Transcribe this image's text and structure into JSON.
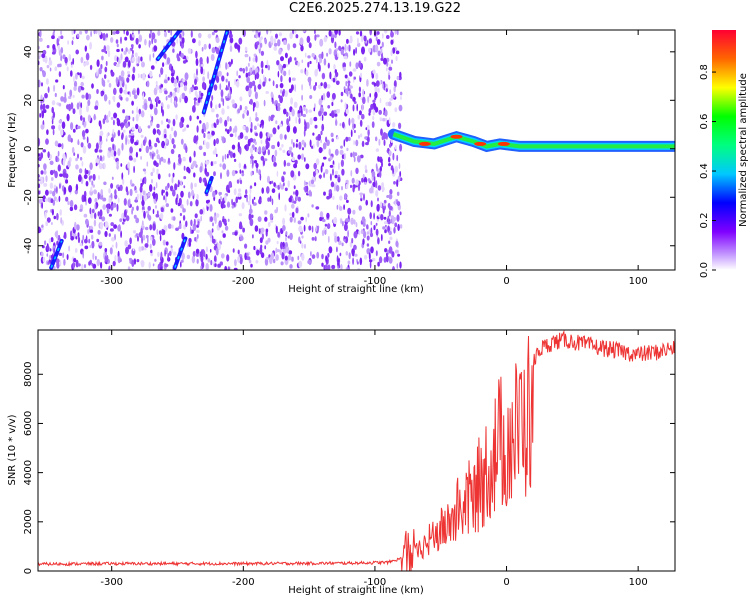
{
  "title": "C2E6.2025.274.13.19.G22",
  "chart_data": [
    {
      "type": "heatmap",
      "name": "spectrogram",
      "xlabel": "Height of straight line (km)",
      "ylabel": "Frequency (Hz)",
      "xlim": [
        -356,
        128
      ],
      "ylim": [
        -50,
        49
      ],
      "xticks": [
        -300,
        -200,
        -100,
        0,
        100
      ],
      "yticks": [
        -40,
        -20,
        0,
        20,
        40
      ],
      "colorbar": {
        "label": "Normalized spectral amplitude",
        "range": [
          0,
          0.97
        ],
        "ticks": [
          "0.0",
          "0.2",
          "0.4",
          "0.6",
          "0.8"
        ],
        "tick_values": [
          0.0,
          0.2,
          0.4,
          0.6,
          0.8
        ]
      },
      "noise_region_end_x": -86,
      "carrier_tones": [
        {
          "x_start": -86,
          "x_end": 128,
          "freq": [
            [
              -86,
              6
            ],
            [
              -70,
              3
            ],
            [
              -55,
              2
            ],
            [
              -38,
              5
            ],
            [
              -25,
              3
            ],
            [
              -15,
              1
            ],
            [
              -5,
              2
            ],
            [
              10,
              1
            ],
            [
              60,
              1
            ],
            [
              128,
              1
            ]
          ]
        }
      ],
      "diagonal_features": [
        {
          "x": [
            -265,
            -248
          ],
          "freq": [
            37,
            49
          ]
        },
        {
          "x": [
            -230,
            -212
          ],
          "freq": [
            15,
            49
          ]
        },
        {
          "x": [
            -252,
            -244
          ],
          "freq": [
            -49,
            -37
          ]
        },
        {
          "x": [
            -228,
            -224
          ],
          "freq": [
            -18,
            -12
          ]
        },
        {
          "x": [
            -346,
            -338
          ],
          "freq": [
            -49,
            -38
          ]
        }
      ]
    },
    {
      "type": "line",
      "name": "snr",
      "xlabel": "Height of straight line (km)",
      "ylabel": "SNR (10 * v/v)",
      "xlim": [
        -356,
        128
      ],
      "ylim": [
        0,
        9800
      ],
      "xticks": [
        -300,
        -200,
        -100,
        0,
        100
      ],
      "yticks": [
        0,
        2000,
        4000,
        6000,
        8000
      ],
      "color": "#ee3333",
      "series": [
        {
          "name": "SNR",
          "x": [
            -356,
            -300,
            -200,
            -120,
            -90,
            -75,
            -65,
            -55,
            -45,
            -35,
            -25,
            -15,
            -5,
            5,
            15,
            25,
            35,
            45,
            60,
            80,
            100,
            115,
            128
          ],
          "y": [
            280,
            300,
            300,
            320,
            350,
            600,
            1100,
            1800,
            2300,
            3300,
            3800,
            5200,
            6500,
            6800,
            7800,
            9000,
            9300,
            9400,
            9200,
            9000,
            8800,
            8900,
            9100
          ]
        }
      ]
    }
  ]
}
